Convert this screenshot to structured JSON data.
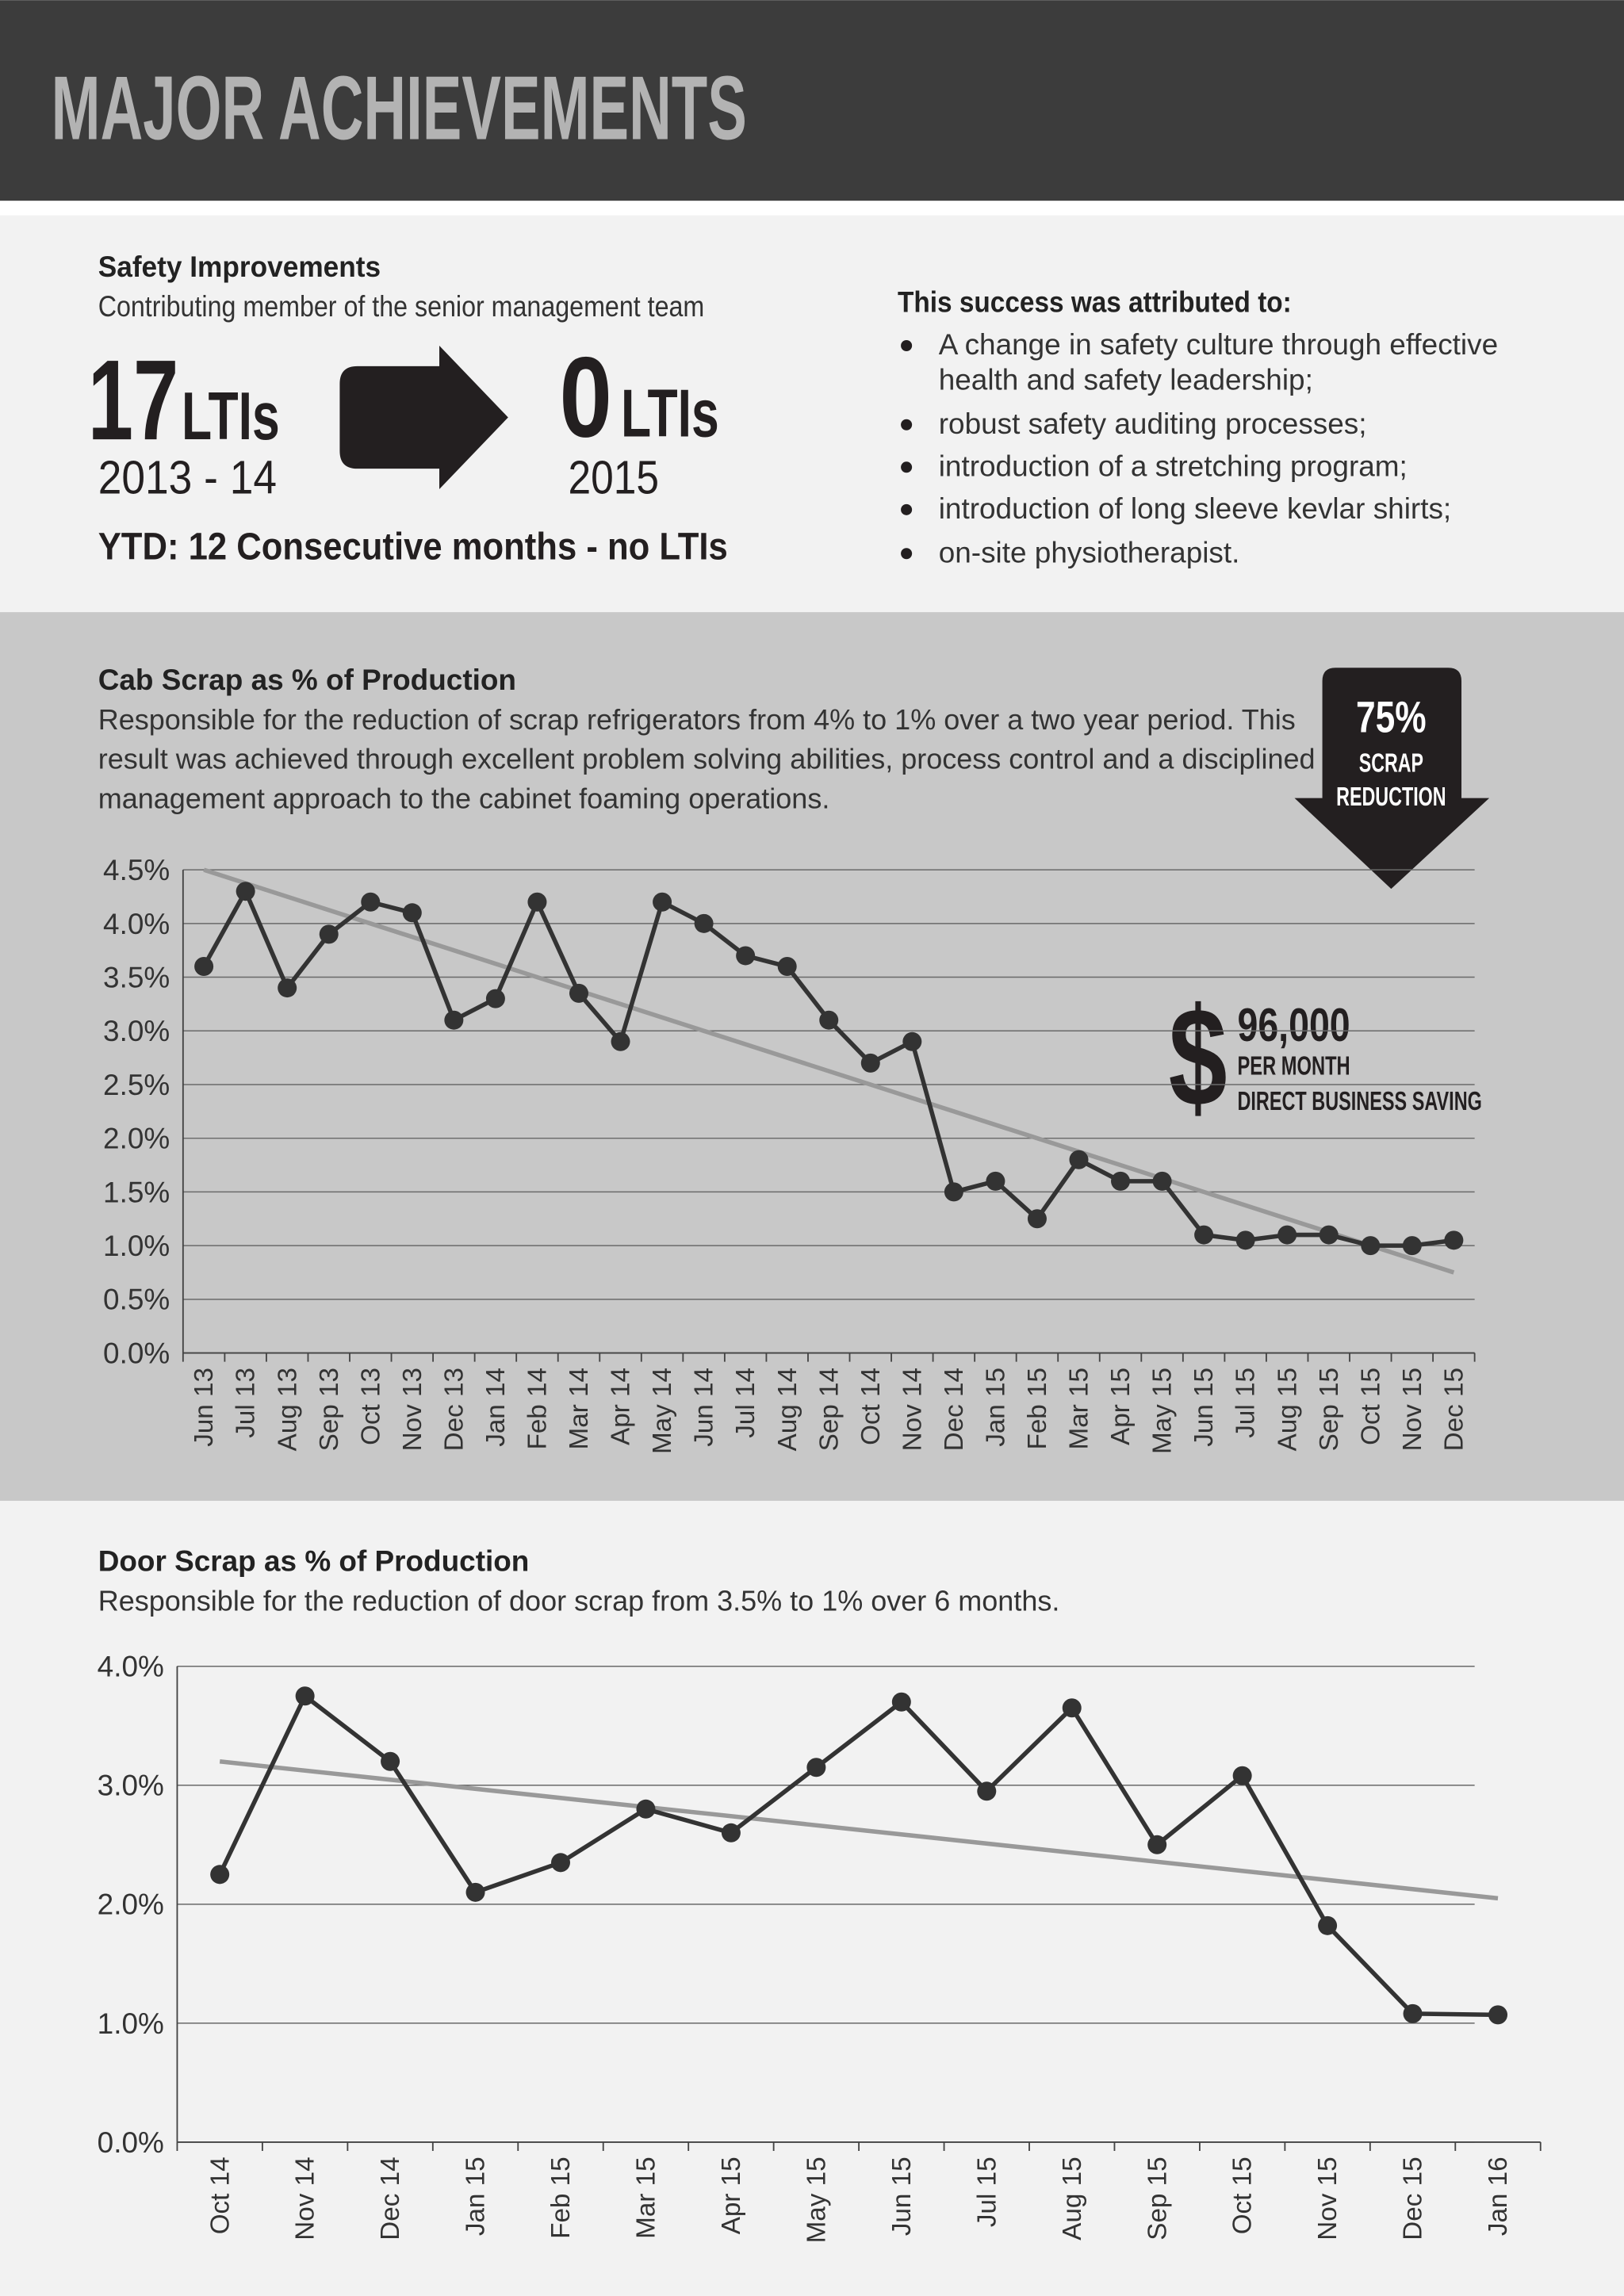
{
  "header": {
    "title": "MAJOR ACHIEVEMENTS"
  },
  "safety": {
    "title": "Safety Improvements",
    "subtitle": "Contributing member of the senior management team",
    "before_number": "17",
    "before_unit": "LTIs",
    "before_period": "2013 - 14",
    "after_number": "0",
    "after_unit": "LTIs",
    "after_period": "2015",
    "ytd": "YTD: 12 Consecutive months - no LTIs",
    "attributed_title": "This success was attributed to:",
    "items": [
      [
        "A change in safety culture through effective",
        "health and safety leadership;"
      ],
      [
        "robust safety auditing processes;"
      ],
      [
        "introduction of a stretching program;"
      ],
      [
        "introduction of long sleeve kevlar shirts;"
      ],
      [
        "on-site physiotherapist."
      ]
    ]
  },
  "scrap_badge": {
    "percent": "75%",
    "line1": "SCRAP",
    "line2": "REDUCTION"
  },
  "saving": {
    "symbol": "$",
    "amount": "96,000",
    "line1": "PER MONTH",
    "line2": "DIRECT BUSINESS SAVING"
  },
  "chart_data": [
    {
      "type": "line",
      "title": "Cab Scrap as % of Production",
      "description_lines": [
        "Responsible for the reduction of scrap refrigerators from 4% to 1% over a two year period. This",
        "result was achieved through excellent problem solving abilities, process control and a disciplined",
        "management approach to the cabinet foaming operations."
      ],
      "categories": [
        "Jun 13",
        "Jul 13",
        "Aug 13",
        "Sep 13",
        "Oct 13",
        "Nov 13",
        "Dec 13",
        "Jan 14",
        "Feb 14",
        "Mar 14",
        "Apr 14",
        "May 14",
        "Jun 14",
        "Jul 14",
        "Aug 14",
        "Sep 14",
        "Oct 14",
        "Nov 14",
        "Dec 14",
        "Jan 15",
        "Feb 15",
        "Mar 15",
        "Apr 15",
        "May 15",
        "Jun 15",
        "Jul 15",
        "Aug 15",
        "Sep 15",
        "Oct 15",
        "Nov 15",
        "Dec 15"
      ],
      "values": [
        3.6,
        4.3,
        3.4,
        3.9,
        4.2,
        4.1,
        3.1,
        3.3,
        4.2,
        3.35,
        2.9,
        4.2,
        4.0,
        3.7,
        3.6,
        3.1,
        2.7,
        2.9,
        1.5,
        1.6,
        1.25,
        1.8,
        1.6,
        1.6,
        1.1,
        1.05,
        1.1,
        1.1,
        1.0,
        1.0,
        1.05
      ],
      "color": "#333333",
      "trend": {
        "color": "#999999",
        "values": [
          4.5,
          0.75
        ]
      },
      "ylim": [
        0,
        4.5
      ],
      "yticks": [
        {
          "value": 0,
          "label": "0.0%"
        },
        {
          "value": 0.5,
          "label": "0.5%"
        },
        {
          "value": 1,
          "label": "1.0%"
        },
        {
          "value": 1.5,
          "label": "1.5%"
        },
        {
          "value": 2,
          "label": "2.0%"
        },
        {
          "value": 2.5,
          "label": "2.5%"
        },
        {
          "value": 3,
          "label": "3.0%"
        },
        {
          "value": 3.5,
          "label": "3.5%"
        },
        {
          "value": 4,
          "label": "4.0%"
        },
        {
          "value": 4.5,
          "label": "4.5%"
        }
      ],
      "grid": true
    },
    {
      "type": "line",
      "title": "Door Scrap as % of Production",
      "description_lines": [
        "Responsible for the reduction of door scrap from 3.5% to 1% over 6 months."
      ],
      "categories": [
        "Oct 14",
        "Nov 14",
        "Dec 14",
        "Jan 15",
        "Feb 15",
        "Mar 15",
        "Apr 15",
        "May 15",
        "Jun 15",
        "Jul 15",
        "Aug 15",
        "Sep 15",
        "Oct 15",
        "Nov 15",
        "Dec 15",
        "Jan 16"
      ],
      "values": [
        2.25,
        3.75,
        3.2,
        2.1,
        2.35,
        2.8,
        2.6,
        3.15,
        3.7,
        2.95,
        3.65,
        2.5,
        3.08,
        1.82,
        1.08,
        1.07
      ],
      "color": "#333333",
      "trend": {
        "color": "#999999",
        "values": [
          3.2,
          2.05
        ]
      },
      "ylim": [
        0,
        4
      ],
      "yticks": [
        {
          "value": 0,
          "label": "0.0%"
        },
        {
          "value": 1,
          "label": "1.0%"
        },
        {
          "value": 2,
          "label": "2.0%"
        },
        {
          "value": 3,
          "label": "3.0%"
        },
        {
          "value": 4,
          "label": "4.0%"
        }
      ],
      "grid": true
    }
  ]
}
